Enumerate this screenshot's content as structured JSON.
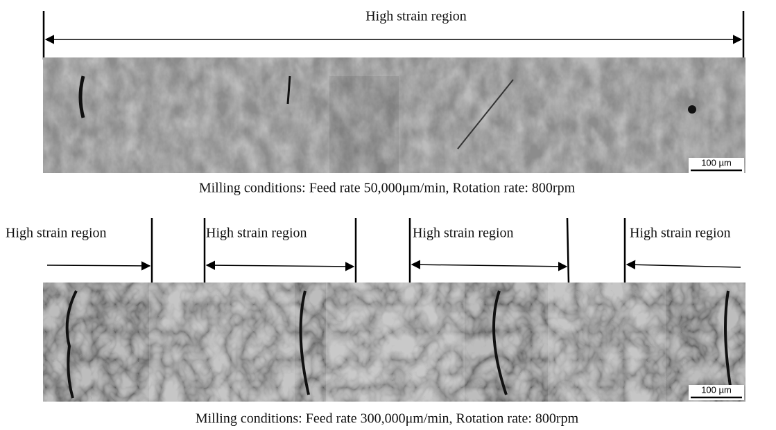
{
  "top": {
    "label": "High strain region",
    "scale_bar": "100 µm",
    "caption": "Milling conditions: Feed rate 50,000μm/min, Rotation rate: 800rpm"
  },
  "bottom": {
    "labels": [
      "High strain region",
      "High strain region",
      "High strain region",
      "High strain region"
    ],
    "scale_bar": "100 µm",
    "caption": "Milling conditions: Feed rate 300,000μm/min, Rotation rate: 800rpm"
  }
}
